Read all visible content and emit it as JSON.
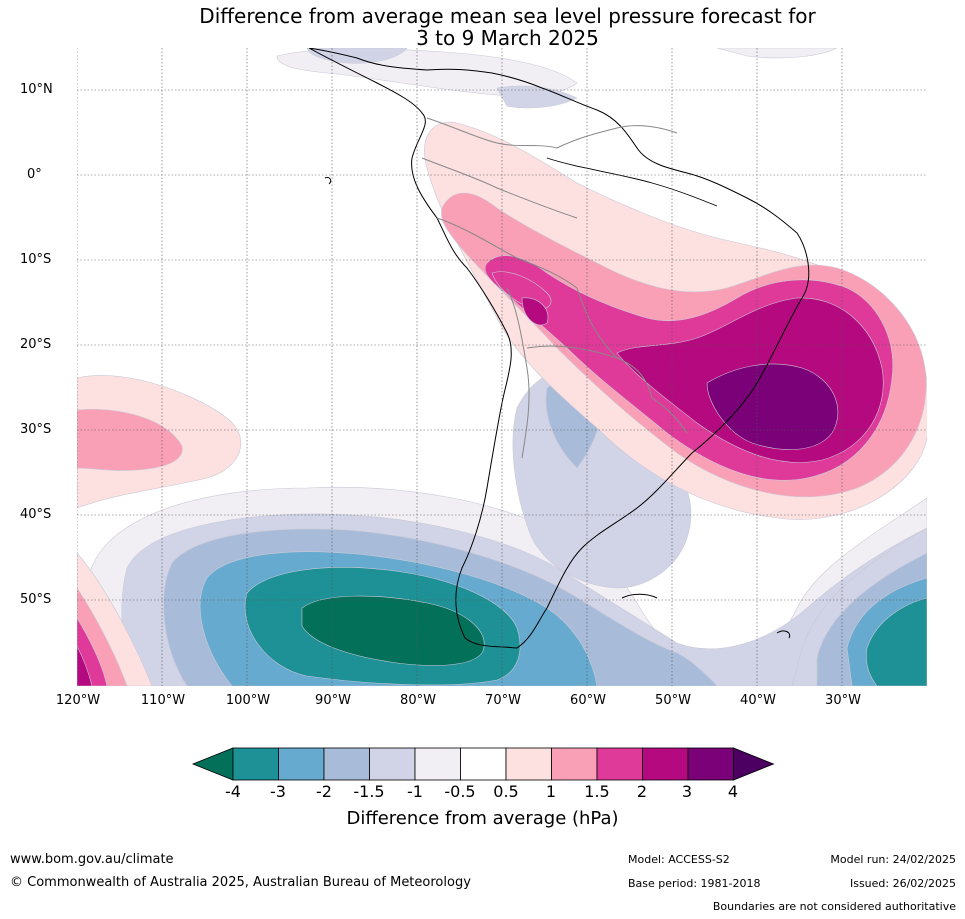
{
  "title_line1": "Difference from average mean sea level pressure forecast for",
  "title_line2": "3 to 9 March 2025",
  "lat_labels": [
    "10°N",
    "0°",
    "10°S",
    "20°S",
    "30°S",
    "40°S",
    "50°S"
  ],
  "lon_labels": [
    "120°W",
    "110°W",
    "100°W",
    "90°W",
    "80°W",
    "70°W",
    "60°W",
    "50°W",
    "40°W",
    "30°W"
  ],
  "colorbar": {
    "ticks": [
      "-4",
      "-3",
      "-2",
      "-1.5",
      "-1",
      "-0.5",
      "0.5",
      "1",
      "1.5",
      "2",
      "3",
      "4"
    ],
    "colors": [
      "#03705a",
      "#1e9196",
      "#66aacf",
      "#a8bcd9",
      "#d1d3e7",
      "#f1eff4",
      "#ffffff",
      "#fde0e0",
      "#f9a0b7",
      "#df3a99",
      "#b5097f",
      "#7a0177",
      "#4b0062"
    ],
    "title": "Difference from average (hPa)"
  },
  "footer": {
    "website": "www.bom.gov.au/climate",
    "copyright": "© Commonwealth of Australia 2025, Australian Bureau of Meteorology",
    "model": "Model: ACCESS-S2",
    "base_period": "Base period: 1981-2018",
    "model_run": "Model run: 24/02/2025",
    "issued": "Issued: 26/02/2025",
    "disclaimer": "Boundaries are not considered authoritative"
  }
}
